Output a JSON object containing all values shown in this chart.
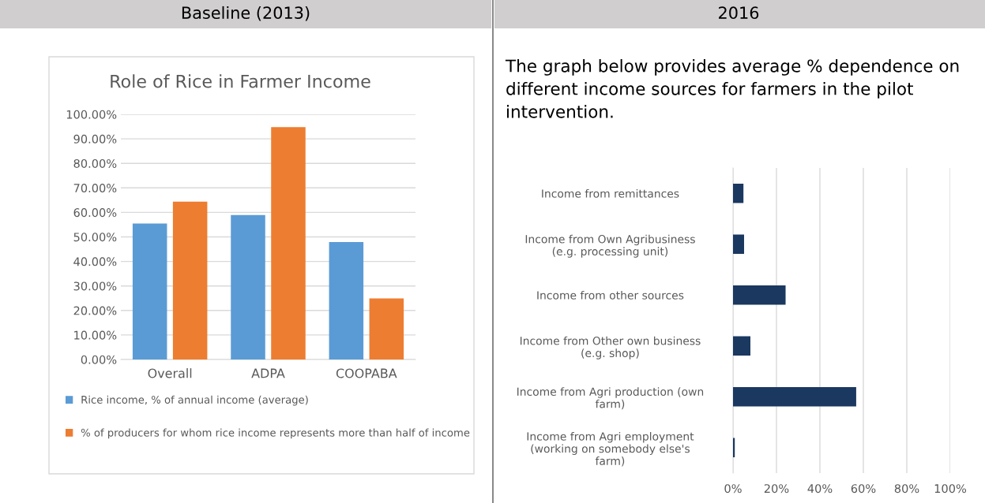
{
  "chart_data": [
    {
      "type": "bar",
      "subtitle": "Baseline (2013)",
      "title": "Role of Rice in Farmer Income",
      "categories": [
        "Overall",
        "ADPA",
        "COOPABA"
      ],
      "series": [
        {
          "name": "Rice income, % of annual income (average)",
          "color": "#5b9bd5",
          "values": [
            55.5,
            58.9,
            47.9
          ]
        },
        {
          "name": "% of producers for whom rice income represents more than half of income",
          "color": "#ed7d31",
          "values": [
            64.4,
            94.8,
            24.9
          ]
        }
      ],
      "ylim": [
        0,
        100
      ],
      "yticks": [
        {
          "value": 0,
          "label": "0.00%"
        },
        {
          "value": 10,
          "label": "10.00%"
        },
        {
          "value": 20,
          "label": "20.00%"
        },
        {
          "value": 30,
          "label": "30.00%"
        },
        {
          "value": 40,
          "label": "40.00%"
        },
        {
          "value": 50,
          "label": "50.00%"
        },
        {
          "value": 60,
          "label": "60.00%"
        },
        {
          "value": 70,
          "label": "70.00%"
        },
        {
          "value": 80,
          "label": "80.00%"
        },
        {
          "value": 90,
          "label": "90.00%"
        },
        {
          "value": 100,
          "label": "100.00%"
        }
      ],
      "grid": "y",
      "legend": "bottom"
    },
    {
      "type": "bar",
      "orientation": "horizontal",
      "subtitle": "2016",
      "annotations": [
        "The graph below provides average % dependence on different income sources for farmers in the pilot intervention."
      ],
      "categories": [
        "Income from remittances",
        "Income from Own Agribusiness (e.g. processing unit)",
        "Income from other sources",
        "Income from Other own business (e.g. shop)",
        "Income from Agri production (own farm)",
        "Income from Agri employment (working on somebody else's farm)"
      ],
      "values": [
        4.8,
        5.1,
        24.2,
        8.0,
        56.7,
        0.8
      ],
      "color": "#1a3860",
      "xlim": [
        0,
        100
      ],
      "xticks": [
        {
          "value": 0,
          "label": "0%"
        },
        {
          "value": 20,
          "label": "20%"
        },
        {
          "value": 40,
          "label": "40%"
        },
        {
          "value": 60,
          "label": "60%"
        },
        {
          "value": 80,
          "label": "80%"
        },
        {
          "value": 100,
          "label": "100%"
        }
      ],
      "grid": "x"
    }
  ]
}
